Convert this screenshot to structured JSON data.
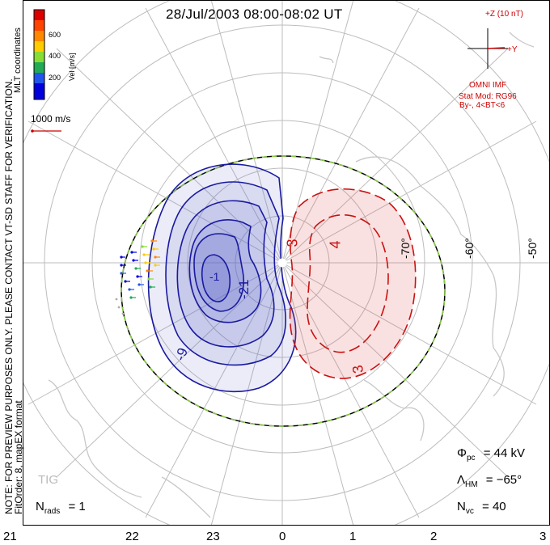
{
  "title": "28/Jul/2003 08:00-08:02 UT",
  "side_notes": {
    "preview": "NOTE: FOR PREVIEW PURPOSES ONLY. PLEASE CONTACT VT-SD STAFF FOR VERIFICATION.",
    "fit": "FitOrder: 8, mapEX format",
    "coords": "MLT coordinates"
  },
  "colorbar": {
    "label": "Vel [m/s]",
    "ticks": [
      "600",
      "400",
      "200"
    ],
    "colors": [
      "#0000dd",
      "#2255ee",
      "#22aa55",
      "#88dd33",
      "#ffcc00",
      "#ff8800",
      "#ff4400",
      "#dd0000"
    ]
  },
  "vector_scale": "1000 m/s",
  "imf": {
    "z_label": "+Z (10 nT)",
    "y_label": "+Y",
    "source": "OMNI IMF",
    "model": "Stat Mod: RG96",
    "condition": "By-, 4<BT<6"
  },
  "lat_labels": [
    "-70°",
    "-60°",
    "-50°"
  ],
  "contour_labels": {
    "neg": [
      "-1",
      "-21",
      "-9"
    ],
    "pos": [
      "4",
      "3",
      "3"
    ]
  },
  "mlt_labels": [
    "21",
    "22",
    "23",
    "0",
    "1",
    "2",
    "3"
  ],
  "stats": {
    "phi_sym": "Φ",
    "phi_sub": "pc",
    "phi_val": "= 44 kV",
    "lam_sym": "Λ",
    "lam_sub": "HM",
    "lam_val": "= −65°",
    "nvc_sym": "N",
    "nvc_sub": "vc",
    "nvc_val": "= 40",
    "nrads_sym": "N",
    "nrads_sub": "rads",
    "nrads_val": "= 1"
  },
  "watermark": "TIG",
  "colors": {
    "negative": "#1a1aa0",
    "positive": "#cc1010",
    "grid": "#bbbbbb",
    "boundary_dash": "#88cc44"
  }
}
